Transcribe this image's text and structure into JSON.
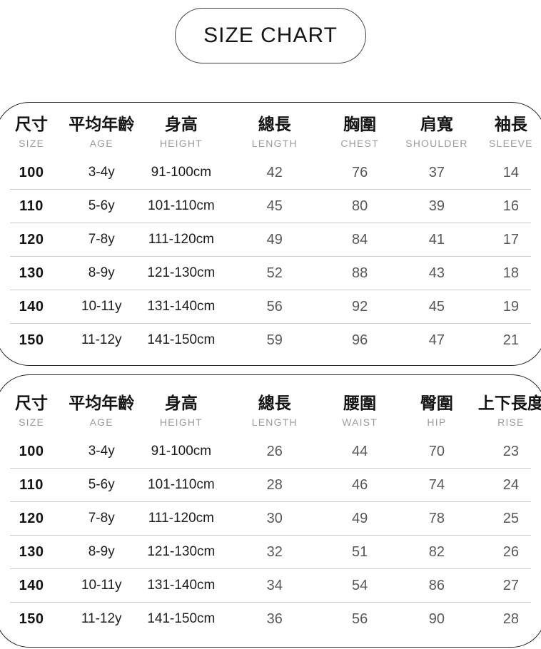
{
  "title": "SIZE CHART",
  "colors": {
    "background": "#ffffff",
    "header_text": "#141414",
    "subheader_text": "#9c9c9c",
    "value_text": "#585858",
    "table_border": "#262626",
    "row_divider": "#cbcbcb"
  },
  "tables": [
    {
      "name": "tops",
      "columns": [
        {
          "zh": "尺寸",
          "en": "SIZE"
        },
        {
          "zh": "平均年齡",
          "en": "AGE"
        },
        {
          "zh": "身高",
          "en": "HEIGHT"
        },
        {
          "zh": "總長",
          "en": "LENGTH"
        },
        {
          "zh": "胸圍",
          "en": "CHEST"
        },
        {
          "zh": "肩寬",
          "en": "SHOULDER"
        },
        {
          "zh": "袖長",
          "en": "SLEEVE"
        }
      ],
      "rows": [
        [
          "100",
          "3-4y",
          "91-100cm",
          "42",
          "76",
          "37",
          "14"
        ],
        [
          "110",
          "5-6y",
          "101-110cm",
          "45",
          "80",
          "39",
          "16"
        ],
        [
          "120",
          "7-8y",
          "111-120cm",
          "49",
          "84",
          "41",
          "17"
        ],
        [
          "130",
          "8-9y",
          "121-130cm",
          "52",
          "88",
          "43",
          "18"
        ],
        [
          "140",
          "10-11y",
          "131-140cm",
          "56",
          "92",
          "45",
          "19"
        ],
        [
          "150",
          "11-12y",
          "141-150cm",
          "59",
          "96",
          "47",
          "21"
        ]
      ]
    },
    {
      "name": "bottoms",
      "columns": [
        {
          "zh": "尺寸",
          "en": "SIZE"
        },
        {
          "zh": "平均年齡",
          "en": "AGE"
        },
        {
          "zh": "身高",
          "en": "HEIGHT"
        },
        {
          "zh": "總長",
          "en": "LENGTH"
        },
        {
          "zh": "腰圍",
          "en": "WAIST"
        },
        {
          "zh": "臀圍",
          "en": "HIP"
        },
        {
          "zh": "上下長度",
          "en": "RISE"
        }
      ],
      "rows": [
        [
          "100",
          "3-4y",
          "91-100cm",
          "26",
          "44",
          "70",
          "23"
        ],
        [
          "110",
          "5-6y",
          "101-110cm",
          "28",
          "46",
          "74",
          "24"
        ],
        [
          "120",
          "7-8y",
          "111-120cm",
          "30",
          "49",
          "78",
          "25"
        ],
        [
          "130",
          "8-9y",
          "121-130cm",
          "32",
          "51",
          "82",
          "26"
        ],
        [
          "140",
          "10-11y",
          "131-140cm",
          "34",
          "54",
          "86",
          "27"
        ],
        [
          "150",
          "11-12y",
          "141-150cm",
          "36",
          "56",
          "90",
          "28"
        ]
      ]
    }
  ]
}
